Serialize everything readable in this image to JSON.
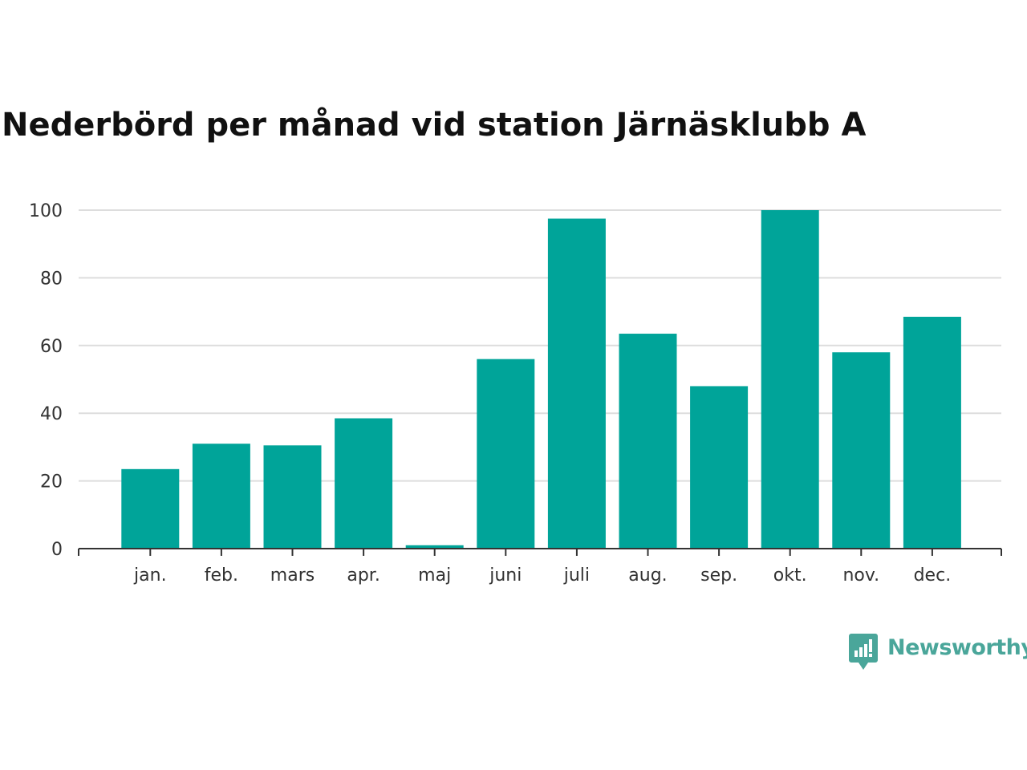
{
  "chart_data": {
    "type": "bar",
    "title": "Nederbörd per månad vid station Järnäsklubb A",
    "xlabel": "",
    "ylabel": "",
    "categories": [
      "jan.",
      "feb.",
      "mars",
      "apr.",
      "maj",
      "juni",
      "juli",
      "aug.",
      "sep.",
      "okt.",
      "nov.",
      "dec."
    ],
    "values": [
      23.5,
      31,
      30.5,
      38.5,
      1,
      56,
      97.5,
      63.5,
      48,
      100,
      58,
      68.5
    ],
    "ylim": [
      0,
      100
    ],
    "yticks": [
      0,
      20,
      40,
      60,
      80,
      100
    ],
    "grid": true,
    "legend": "none",
    "bar_color": "#00a499"
  },
  "brand": {
    "name": "Newsworthy",
    "icon": "newsworthy-logo-icon",
    "color": "#4aa69a"
  }
}
